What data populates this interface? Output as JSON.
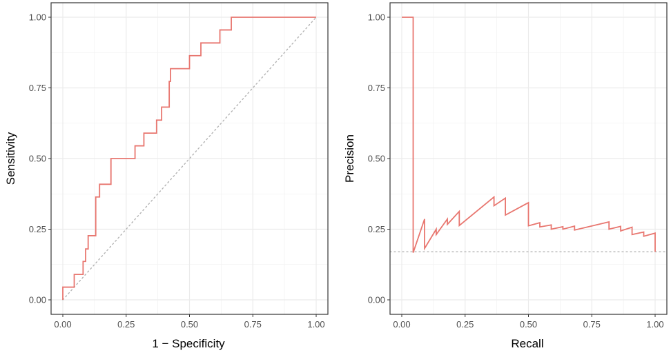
{
  "chart_data": [
    {
      "type": "line",
      "title": "",
      "xlabel": "1 − Specificity",
      "ylabel": "Sensitivity",
      "xlim": [
        0,
        1
      ],
      "ylim": [
        0,
        1
      ],
      "x_ticks": [
        "0.00",
        "0.25",
        "0.50",
        "0.75",
        "1.00"
      ],
      "y_ticks": [
        "0.00",
        "0.25",
        "0.50",
        "0.75",
        "1.00"
      ],
      "grid": true,
      "line_color": "#e8766f",
      "reference_color": "#b3b3b3",
      "reference_line": {
        "style": "dotted",
        "points": [
          [
            0,
            0
          ],
          [
            1,
            1
          ]
        ]
      },
      "series": [
        {
          "points": [
            [
              0.0,
              0.0
            ],
            [
              0.0,
              0.045
            ],
            [
              0.045,
              0.045
            ],
            [
              0.045,
              0.09
            ],
            [
              0.08,
              0.09
            ],
            [
              0.08,
              0.136
            ],
            [
              0.09,
              0.136
            ],
            [
              0.09,
              0.18
            ],
            [
              0.1,
              0.18
            ],
            [
              0.1,
              0.227
            ],
            [
              0.13,
              0.227
            ],
            [
              0.13,
              0.364
            ],
            [
              0.145,
              0.364
            ],
            [
              0.145,
              0.409
            ],
            [
              0.19,
              0.409
            ],
            [
              0.19,
              0.5
            ],
            [
              0.285,
              0.5
            ],
            [
              0.285,
              0.545
            ],
            [
              0.32,
              0.545
            ],
            [
              0.32,
              0.59
            ],
            [
              0.37,
              0.59
            ],
            [
              0.37,
              0.636
            ],
            [
              0.39,
              0.636
            ],
            [
              0.39,
              0.682
            ],
            [
              0.42,
              0.682
            ],
            [
              0.42,
              0.773
            ],
            [
              0.425,
              0.773
            ],
            [
              0.425,
              0.818
            ],
            [
              0.5,
              0.818
            ],
            [
              0.5,
              0.864
            ],
            [
              0.545,
              0.864
            ],
            [
              0.545,
              0.909
            ],
            [
              0.62,
              0.909
            ],
            [
              0.62,
              0.955
            ],
            [
              0.665,
              0.955
            ],
            [
              0.665,
              1.0
            ],
            [
              1.0,
              1.0
            ]
          ]
        }
      ]
    },
    {
      "type": "line",
      "title": "",
      "xlabel": "Recall",
      "ylabel": "Precision",
      "xlim": [
        0,
        1
      ],
      "ylim": [
        0,
        1
      ],
      "x_ticks": [
        "0.00",
        "0.25",
        "0.50",
        "0.75",
        "1.00"
      ],
      "y_ticks": [
        "0.00",
        "0.25",
        "0.50",
        "0.75",
        "1.00"
      ],
      "grid": true,
      "line_color": "#e8766f",
      "reference_color": "#b3b3b3",
      "reference_line": {
        "style": "dotted",
        "y": 0.17
      },
      "series": [
        {
          "points": [
            [
              0.0,
              1.0
            ],
            [
              0.045,
              1.0
            ],
            [
              0.045,
              0.167
            ],
            [
              0.09,
              0.286
            ],
            [
              0.09,
              0.182
            ],
            [
              0.136,
              0.25
            ],
            [
              0.136,
              0.231
            ],
            [
              0.18,
              0.286
            ],
            [
              0.18,
              0.267
            ],
            [
              0.227,
              0.313
            ],
            [
              0.227,
              0.263
            ],
            [
              0.364,
              0.364
            ],
            [
              0.364,
              0.333
            ],
            [
              0.409,
              0.36
            ],
            [
              0.409,
              0.3
            ],
            [
              0.5,
              0.344
            ],
            [
              0.5,
              0.262
            ],
            [
              0.545,
              0.273
            ],
            [
              0.545,
              0.258
            ],
            [
              0.59,
              0.265
            ],
            [
              0.59,
              0.25
            ],
            [
              0.636,
              0.259
            ],
            [
              0.636,
              0.25
            ],
            [
              0.682,
              0.261
            ],
            [
              0.682,
              0.247
            ],
            [
              0.818,
              0.276
            ],
            [
              0.818,
              0.25
            ],
            [
              0.864,
              0.26
            ],
            [
              0.864,
              0.244
            ],
            [
              0.909,
              0.257
            ],
            [
              0.909,
              0.231
            ],
            [
              0.955,
              0.24
            ],
            [
              0.955,
              0.225
            ],
            [
              1.0,
              0.236
            ],
            [
              1.0,
              0.17
            ]
          ]
        }
      ]
    }
  ]
}
